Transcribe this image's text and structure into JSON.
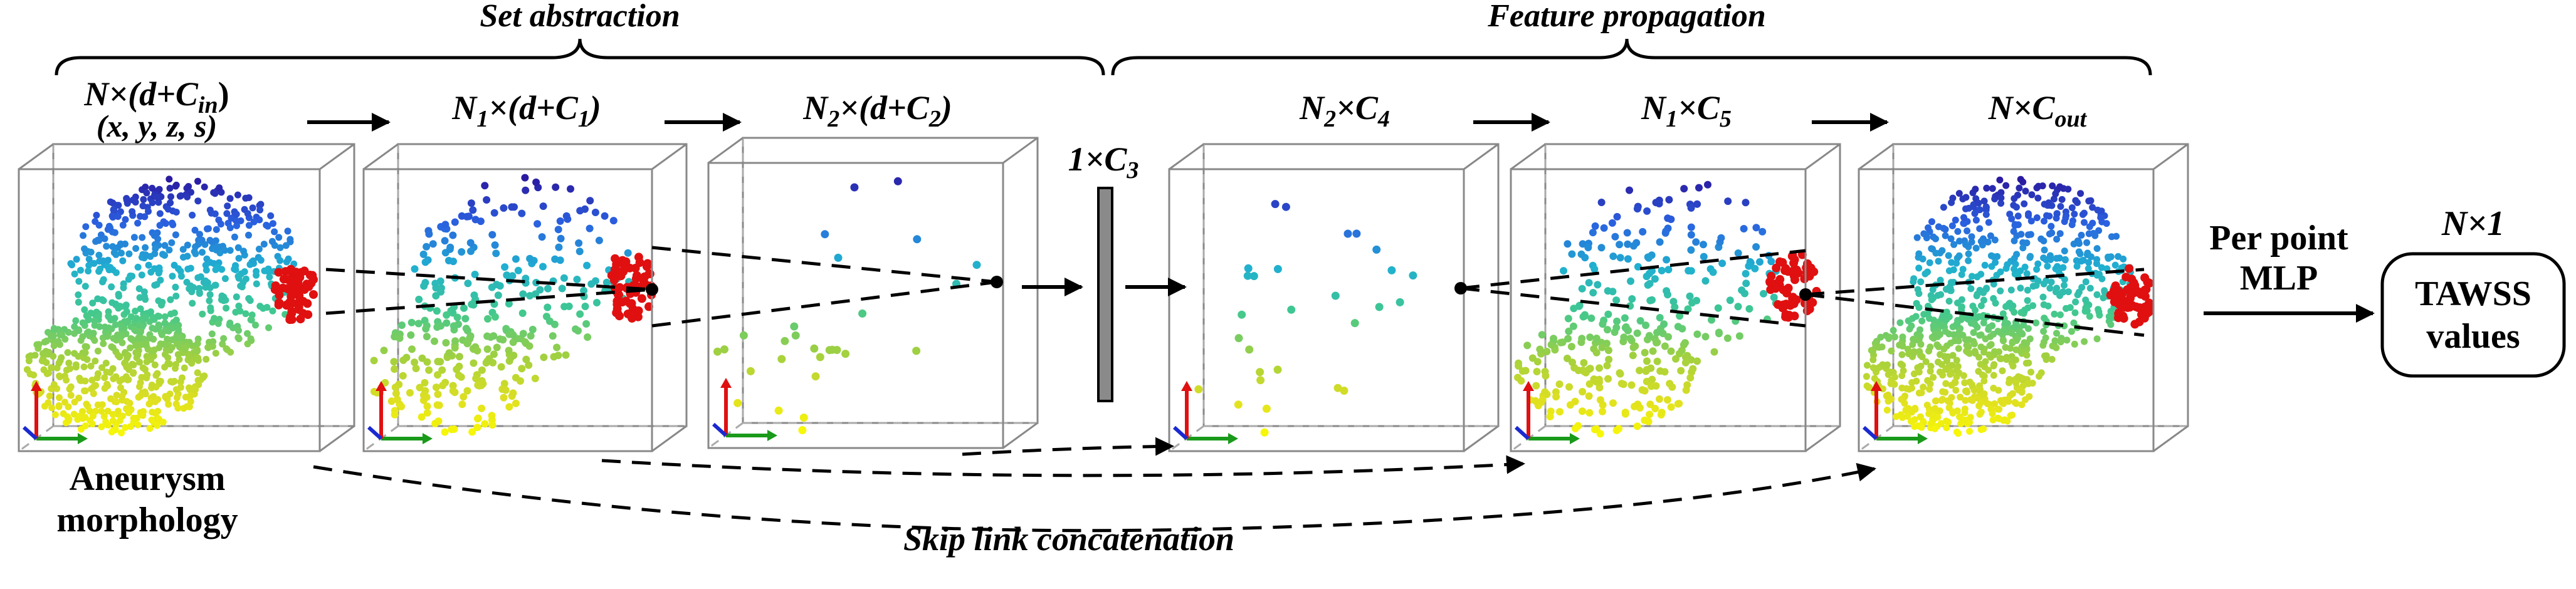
{
  "headers": {
    "set_abstraction": "Set abstraction",
    "feature_propagation": "Feature propagation"
  },
  "stages": [
    {
      "main": "N×(d+C",
      "sub": "in",
      "tail": ")",
      "line2": "(x, y, z, s)"
    },
    {
      "main": "N",
      "sub": "1",
      "mid": "×(d+C",
      "sub2": "1",
      "tail": ")"
    },
    {
      "main": "N",
      "sub": "2",
      "mid": "×(d+C",
      "sub2": "2",
      "tail": ")"
    },
    {
      "main": "N",
      "sub": "2",
      "mid": "×C",
      "sub2": "4",
      "tail": ""
    },
    {
      "main": "N",
      "sub": "1",
      "mid": "×C",
      "sub2": "5",
      "tail": ""
    },
    {
      "main": "N×C",
      "sub": "out",
      "tail": ""
    }
  ],
  "bottleneck": {
    "main": "1×C",
    "sub": "3"
  },
  "input_caption": {
    "line1": "Aneurysm",
    "line2": "morphology"
  },
  "skip_label": "Skip link concatenation",
  "mlp_label": {
    "line1": "Per point",
    "line2": "MLP"
  },
  "output": {
    "dim": "N×1",
    "line1": "TAWSS",
    "line2": "values"
  },
  "colors": {
    "highlight": "#e01010",
    "axis_x": "#1a9a1a",
    "axis_y": "#e01010",
    "axis_z": "#1a2ad0",
    "bottleneck_fill": "#8a8a8a",
    "colormap": [
      "#2a1aa0",
      "#2a60e0",
      "#20b0d0",
      "#40c890",
      "#a0d040",
      "#e0e020",
      "#ffff00"
    ]
  }
}
